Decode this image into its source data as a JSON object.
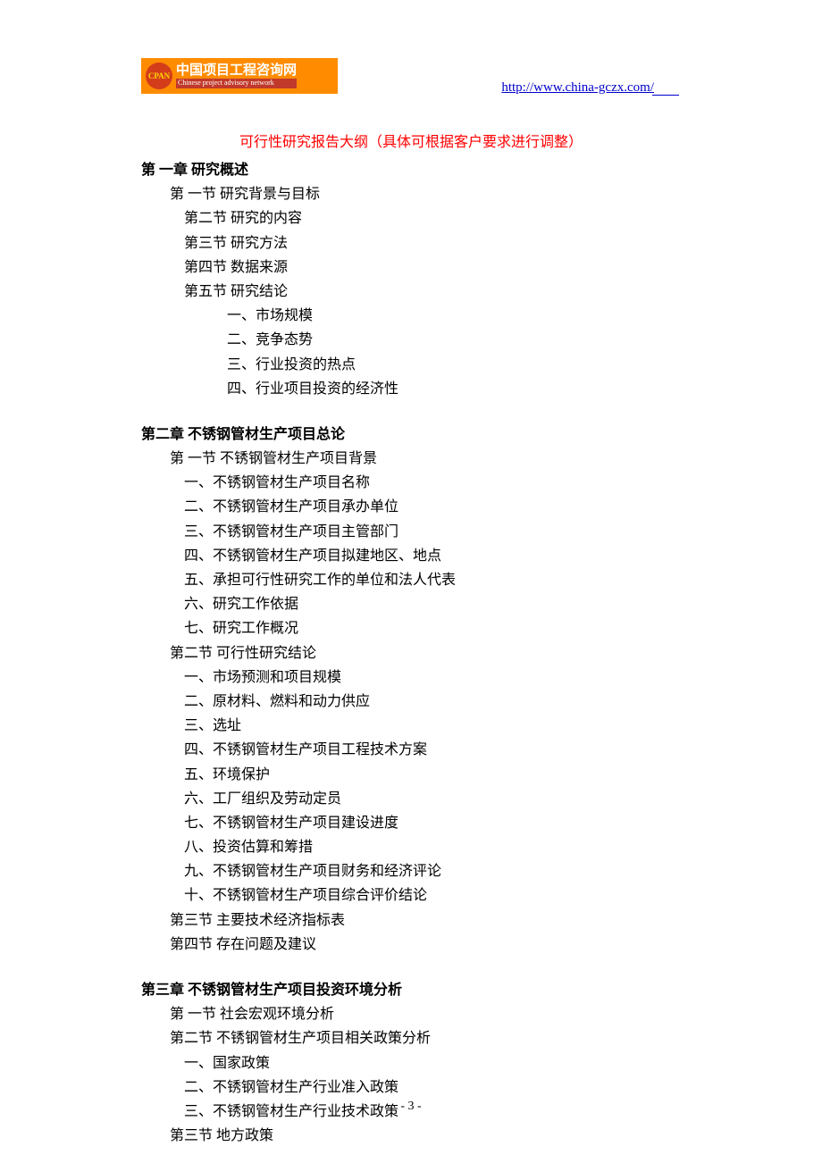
{
  "logo": {
    "cn": "中国项目工程咨询网",
    "en": "Chinese project advisory network",
    "mark": "CPAN"
  },
  "header_url": "http://www.china-gczx.com/",
  "title": "可行性研究报告大纲（具体可根据客户要求进行调整）",
  "chapter1": {
    "title": "第 一章  研究概述",
    "s1": "第 一节 研究背景与目标",
    "s2": "第二节 研究的内容",
    "s3": "第三节 研究方法",
    "s4": "第四节 数据来源",
    "s5": "第五节 研究结论",
    "i1": "一、市场规模",
    "i2": "二、竞争态势",
    "i3": "三、行业投资的热点",
    "i4": "四、行业项目投资的经济性"
  },
  "chapter2": {
    "title": "第二章 不锈钢管材生产项目总论",
    "s1": "第 一节 不锈钢管材生产项目背景",
    "s1_i1": "一、不锈钢管材生产项目名称",
    "s1_i2": "二、不锈钢管材生产项目承办单位",
    "s1_i3": "三、不锈钢管材生产项目主管部门",
    "s1_i4": "四、不锈钢管材生产项目拟建地区、地点",
    "s1_i5": "五、承担可行性研究工作的单位和法人代表",
    "s1_i6": "六、研究工作依据",
    "s1_i7": "七、研究工作概况",
    "s2": "第二节  可行性研究结论",
    "s2_i1": "一、市场预测和项目规模",
    "s2_i2": "二、原材料、燃料和动力供应",
    "s2_i3": "三、选址",
    "s2_i4": "四、不锈钢管材生产项目工程技术方案",
    "s2_i5": "五、环境保护",
    "s2_i6": "六、工厂组织及劳动定员",
    "s2_i7": "七、不锈钢管材生产项目建设进度",
    "s2_i8": "八、投资估算和筹措",
    "s2_i9": "九、不锈钢管材生产项目财务和经济评论",
    "s2_i10": "十、不锈钢管材生产项目综合评价结论",
    "s3": "第三节  主要技术经济指标表",
    "s4": "第四节  存在问题及建议"
  },
  "chapter3": {
    "title": "第三章 不锈钢管材生产项目投资环境分析",
    "s1": "第 一节  社会宏观环境分析",
    "s2": "第二节 不锈钢管材生产项目相关政策分析",
    "s2_i1": "一、国家政策",
    "s2_i2": "二、不锈钢管材生产行业准入政策",
    "s2_i3": "三、不锈钢管材生产行业技术政策",
    "s3": "第三节  地方政策"
  },
  "page_number": "- 3 -",
  "colors": {
    "title_red": "#ff0000",
    "url_blue": "#0000cc",
    "logo_bg": "#ff8c00",
    "logo_circle": "#d43d1a",
    "text_black": "#000000"
  }
}
